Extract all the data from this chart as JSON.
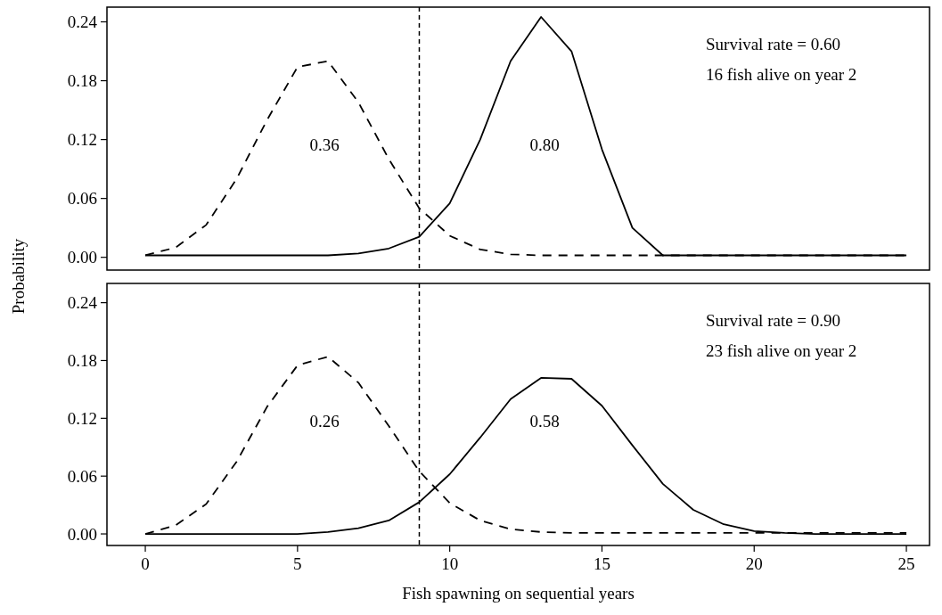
{
  "chart_data": [
    {
      "type": "line",
      "ylabel": "Probability",
      "x": [
        0,
        1,
        2,
        3,
        4,
        5,
        6,
        7,
        8,
        9,
        10,
        11,
        12,
        13,
        14,
        15,
        16,
        17,
        18,
        19,
        20,
        21,
        22,
        23,
        24,
        25
      ],
      "xlim": [
        -1.26,
        25.76
      ],
      "ylim": [
        -0.013,
        0.255
      ],
      "yticks": [
        {
          "value": 0,
          "label": "0.00"
        },
        0.06,
        0.12,
        0.18,
        0.24
      ],
      "tick_labels": "y",
      "grid": false,
      "series": [
        {
          "color": "#000000",
          "line_style": "dashed",
          "values": [
            0.002,
            0.01,
            0.033,
            0.08,
            0.14,
            0.194,
            0.2,
            0.158,
            0.1,
            0.05,
            0.022,
            0.008,
            0.003,
            0.002,
            0.002,
            0.002,
            0.002,
            0.002,
            0.002,
            0.002,
            0.002,
            0.002,
            0.002,
            0.002,
            0.002,
            0.002
          ]
        },
        {
          "color": "#000000",
          "line_style": "solid",
          "values": [
            0.002,
            0.002,
            0.002,
            0.002,
            0.002,
            0.002,
            0.002,
            0.004,
            0.009,
            0.021,
            0.055,
            0.12,
            0.2,
            0.245,
            0.21,
            0.11,
            0.03,
            0.002,
            0.002,
            0.002,
            0.002,
            0.002,
            0.002,
            0.002,
            0.002,
            0.002
          ]
        }
      ],
      "ref_lines": [
        {
          "axis": "x",
          "value": 9,
          "line_style": "dashed",
          "color": "#000000"
        }
      ],
      "annotations": [
        "0.36",
        "0.80",
        "Survival rate = 0.60",
        "16 fish alive on year 2"
      ]
    },
    {
      "type": "line",
      "xlabel": "Fish spawning on sequential years",
      "x": [
        0,
        1,
        2,
        3,
        4,
        5,
        6,
        7,
        8,
        9,
        10,
        11,
        12,
        13,
        14,
        15,
        16,
        17,
        18,
        19,
        20,
        21,
        22,
        23,
        24,
        25
      ],
      "xlim": [
        -1.26,
        25.76
      ],
      "xticks": [
        0,
        5,
        10,
        15,
        20,
        25
      ],
      "ylim": [
        -0.012,
        0.26
      ],
      "yticks": [
        {
          "value": 0,
          "label": "0.00"
        },
        0.06,
        0.12,
        0.18,
        0.24
      ],
      "grid": false,
      "series": [
        {
          "color": "#000000",
          "line_style": "dashed",
          "values": [
            0,
            0.009,
            0.031,
            0.075,
            0.132,
            0.175,
            0.184,
            0.157,
            0.112,
            0.065,
            0.032,
            0.014,
            0.005,
            0.002,
            0.001,
            0.001,
            0.001,
            0.001,
            0.001,
            0.001,
            0.001,
            0.001,
            0.001,
            0.001,
            0.001,
            0.001
          ]
        },
        {
          "color": "#000000",
          "line_style": "solid",
          "values": [
            0,
            0,
            0,
            0,
            0,
            0,
            0.002,
            0.006,
            0.014,
            0.033,
            0.062,
            0.1,
            0.14,
            0.162,
            0.161,
            0.133,
            0.092,
            0.052,
            0.025,
            0.01,
            0.003,
            0.001,
            0,
            0,
            0,
            0
          ]
        }
      ],
      "ref_lines": [
        {
          "axis": "x",
          "value": 9,
          "line_style": "dashed",
          "color": "#000000"
        }
      ],
      "annotations": [
        "0.26",
        "0.58",
        "Survival rate = 0.90",
        "23 fish alive on year 2"
      ]
    }
  ]
}
